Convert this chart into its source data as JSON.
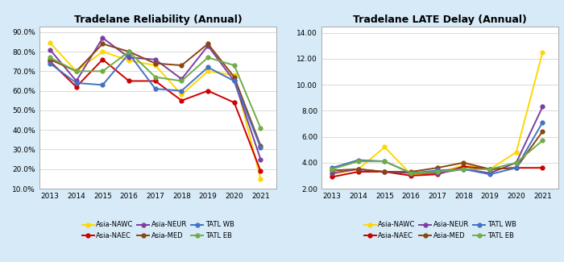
{
  "years": [
    2013,
    2014,
    2015,
    2016,
    2017,
    2018,
    2019,
    2020,
    2021
  ],
  "reliability": {
    "Asia-NAWC": [
      84.5,
      70.0,
      80.0,
      75.5,
      73.0,
      58.0,
      70.0,
      68.0,
      15.0
    ],
    "Asia-NAEC": [
      75.0,
      62.0,
      76.0,
      65.0,
      65.0,
      55.0,
      60.0,
      54.0,
      19.0
    ],
    "Asia-NEUR": [
      81.0,
      65.0,
      87.0,
      77.0,
      76.0,
      66.0,
      83.0,
      65.0,
      25.0
    ],
    "Asia-MED": [
      76.0,
      70.0,
      84.0,
      80.0,
      74.0,
      73.0,
      84.0,
      67.0,
      32.0
    ],
    "TATL WB": [
      74.0,
      64.0,
      63.0,
      79.0,
      61.0,
      60.0,
      72.0,
      65.0,
      31.0
    ],
    "TATL EB": [
      77.0,
      70.0,
      70.0,
      80.0,
      67.0,
      65.0,
      77.0,
      73.0,
      41.0
    ]
  },
  "late_delay": {
    "Asia-NAWC": [
      3.1,
      3.5,
      5.2,
      3.1,
      3.2,
      3.8,
      3.5,
      4.8,
      12.5
    ],
    "Asia-NAEC": [
      2.9,
      3.3,
      3.3,
      3.0,
      3.1,
      3.7,
      3.5,
      3.6,
      3.6
    ],
    "Asia-NEUR": [
      3.2,
      3.5,
      3.3,
      3.2,
      3.2,
      3.5,
      3.2,
      4.0,
      8.3
    ],
    "Asia-MED": [
      3.4,
      3.5,
      3.3,
      3.3,
      3.6,
      4.0,
      3.5,
      3.6,
      6.4
    ],
    "TATL WB": [
      3.6,
      4.2,
      4.1,
      3.2,
      3.4,
      3.5,
      3.1,
      3.6,
      7.1
    ],
    "TATL EB": [
      3.5,
      4.1,
      4.1,
      3.2,
      3.3,
      3.5,
      3.5,
      4.0,
      5.7
    ]
  },
  "colors": {
    "Asia-NAWC": "#FFD700",
    "Asia-NAEC": "#CC0000",
    "Asia-NEUR": "#7B3FA0",
    "Asia-MED": "#8B4513",
    "TATL WB": "#4472C4",
    "TATL EB": "#70AD47"
  },
  "reliability_title": "Tradelane Reliability (Annual)",
  "late_delay_title": "Tradelane LATE Delay (Annual)",
  "reliability_ylim": [
    10.0,
    93.0
  ],
  "reliability_yticks": [
    10.0,
    20.0,
    30.0,
    40.0,
    50.0,
    60.0,
    70.0,
    80.0,
    90.0
  ],
  "late_delay_ylim": [
    2.0,
    14.5
  ],
  "late_delay_yticks": [
    2.0,
    4.0,
    6.0,
    8.0,
    10.0,
    12.0,
    14.0
  ],
  "bg_color": "#D6EAF8",
  "plot_bg_color": "#FFFFFF",
  "marker": "o",
  "markersize": 3.5,
  "linewidth": 1.4,
  "legend_order": [
    "Asia-NAWC",
    "Asia-NAEC",
    "Asia-NEUR",
    "Asia-MED",
    "TATL WB",
    "TATL EB"
  ],
  "legend_ncol": 3,
  "title_fontsize": 9,
  "tick_fontsize": 6.5,
  "legend_fontsize": 6.0
}
